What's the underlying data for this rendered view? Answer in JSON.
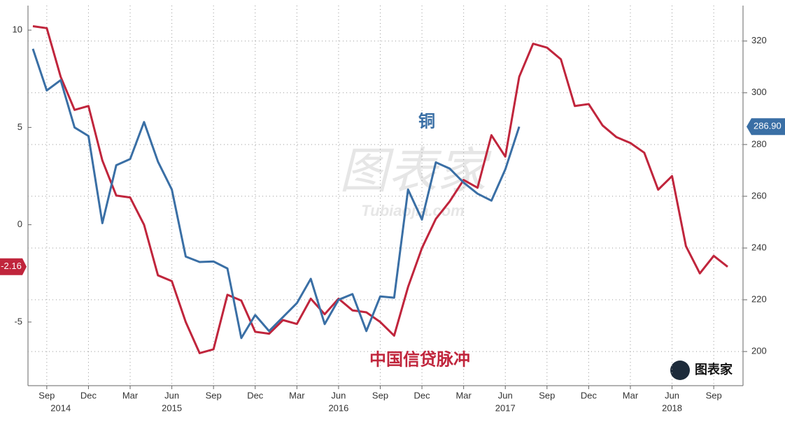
{
  "chart_data": {
    "type": "line",
    "x": [
      "2014-08",
      "2014-09",
      "2014-10",
      "2014-11",
      "2014-12",
      "2015-01",
      "2015-02",
      "2015-03",
      "2015-04",
      "2015-05",
      "2015-06",
      "2015-07",
      "2015-08",
      "2015-09",
      "2015-10",
      "2015-11",
      "2015-12",
      "2016-01",
      "2016-02",
      "2016-03",
      "2016-04",
      "2016-05",
      "2016-06",
      "2016-07",
      "2016-08",
      "2016-09",
      "2016-10",
      "2016-11",
      "2016-12",
      "2017-01",
      "2017-02",
      "2017-03",
      "2017-04",
      "2017-05",
      "2017-06",
      "2017-07",
      "2017-08",
      "2017-09",
      "2017-10",
      "2017-11",
      "2017-12",
      "2018-01",
      "2018-02",
      "2018-03",
      "2018-04",
      "2018-05",
      "2018-06",
      "2018-07",
      "2018-08",
      "2018-09",
      "2018-10"
    ],
    "xlim": [
      "2014-08",
      "2018-10"
    ],
    "series": [
      {
        "name": "中国信贷脉冲",
        "color": "#c0253c",
        "end_label": "-2.16",
        "values": [
          10.2,
          10.1,
          7.6,
          5.9,
          6.1,
          3.3,
          1.5,
          1.4,
          0,
          -2.6,
          -2.9,
          -5.0,
          -6.6,
          -6.4,
          -3.6,
          -3.9,
          -5.5,
          -5.6,
          -4.9,
          -5.1,
          -3.8,
          -4.6,
          -3.8,
          -4.4,
          -4.5,
          -5.0,
          -5.7,
          -3.2,
          -1.2,
          0.3,
          1.2,
          2.3,
          1.9,
          4.6,
          3.5,
          7.6,
          9.3,
          9.1,
          8.5,
          6.1,
          6.2,
          5.1,
          4.5,
          4.2,
          3.7,
          1.8,
          2.5,
          -1.1,
          -2.5,
          -1.6,
          -2.16
        ]
      },
      {
        "name": "铜",
        "color": "#3a6fa5",
        "axis": "y2",
        "end_label": "286.90",
        "values": [
          317.0,
          300.9,
          304.9,
          286.6,
          283.3,
          249.6,
          272.0,
          274.4,
          288.7,
          273.4,
          262.6,
          236.7,
          234.6,
          234.8,
          232.1,
          205.2,
          214.1,
          207.9,
          213.3,
          218.7,
          228.1,
          210.6,
          220.0,
          222.2,
          207.9,
          221.3,
          220.8,
          262.6,
          251.0,
          273.1,
          270.7,
          265.3,
          261.0,
          258.3,
          270.4,
          286.9,
          null,
          null,
          null,
          null,
          null,
          null,
          null,
          null,
          null,
          null,
          null,
          null,
          null,
          null,
          null
        ]
      }
    ],
    "ylim": [
      -8.27,
      11.26
    ],
    "yticks": [
      -5,
      0,
      5,
      10
    ],
    "y2lim": [
      186.8,
      333.7
    ],
    "y2ticks": [
      200,
      220,
      240,
      260,
      280,
      300,
      320
    ],
    "xticks": [
      {
        "value": "2014-09",
        "label": "Sep"
      },
      {
        "value": "2014-12",
        "label": "Dec"
      },
      {
        "value": "2015-03",
        "label": "Mar"
      },
      {
        "value": "2015-06",
        "label": "Jun"
      },
      {
        "value": "2015-09",
        "label": "Sep"
      },
      {
        "value": "2015-12",
        "label": "Dec"
      },
      {
        "value": "2016-03",
        "label": "Mar"
      },
      {
        "value": "2016-06",
        "label": "Jun"
      },
      {
        "value": "2016-09",
        "label": "Sep"
      },
      {
        "value": "2016-12",
        "label": "Dec"
      },
      {
        "value": "2017-03",
        "label": "Mar"
      },
      {
        "value": "2017-06",
        "label": "Jun"
      },
      {
        "value": "2017-09",
        "label": "Sep"
      },
      {
        "value": "2017-12",
        "label": "Dec"
      },
      {
        "value": "2018-03",
        "label": "Mar"
      },
      {
        "value": "2018-06",
        "label": "Jun"
      },
      {
        "value": "2018-09",
        "label": "Sep"
      }
    ],
    "year_labels": [
      {
        "value": "2014-10",
        "label": "2014"
      },
      {
        "value": "2015-06",
        "label": "2015"
      },
      {
        "value": "2016-06",
        "label": "2016"
      },
      {
        "value": "2017-06",
        "label": "2017"
      },
      {
        "value": "2018-06",
        "label": "2018"
      }
    ],
    "grid": true,
    "watermark": "图表家",
    "watermark_sub": "Tubiaojia.com"
  }
}
